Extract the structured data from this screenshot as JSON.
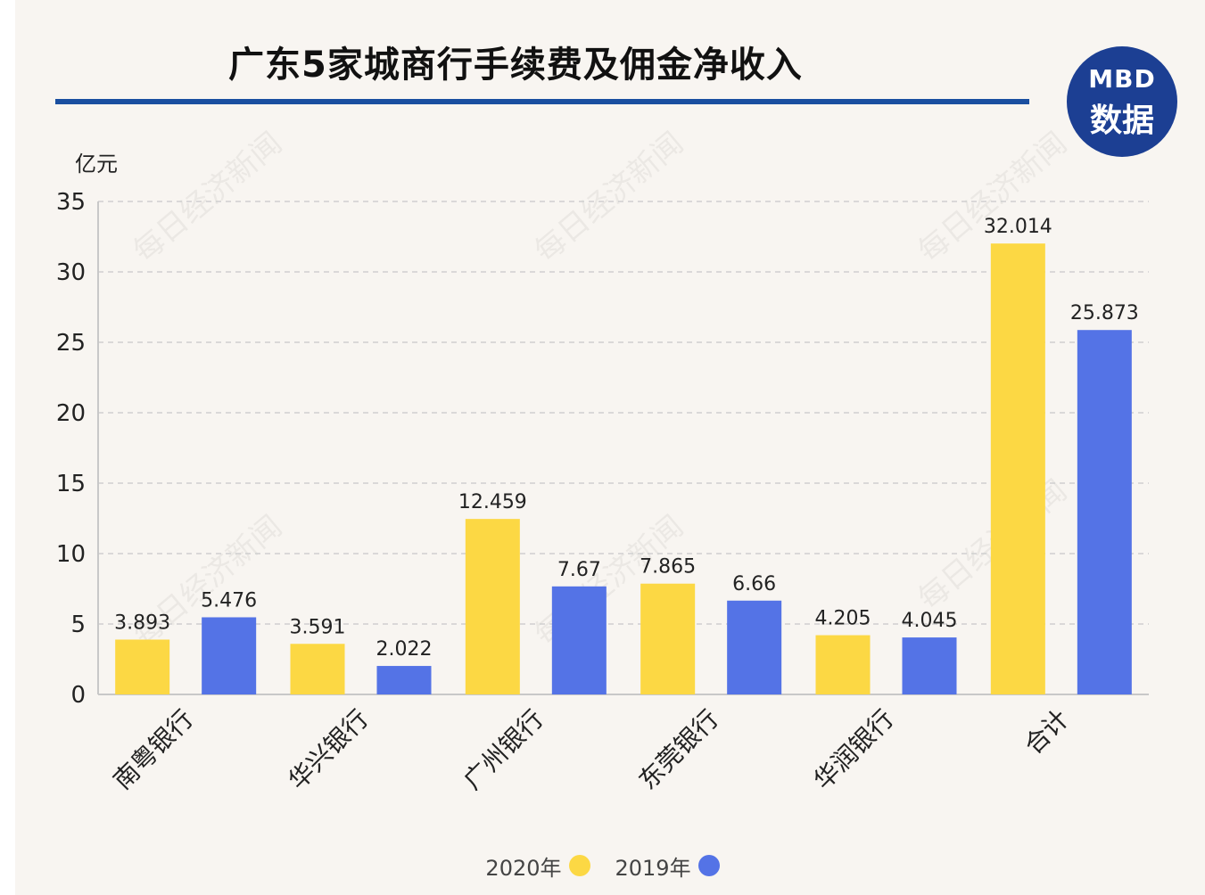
{
  "title": "广东5家城商行手续费及佣金净收入",
  "badge": {
    "line1": "MBD",
    "line2": "数据"
  },
  "watermark": "每日经济新闻",
  "colors": {
    "series_2020": "#fcd844",
    "series_2019": "#5473e6",
    "rule": "#1a4fa0",
    "badge": "#1c3f93"
  },
  "chart_data": {
    "type": "bar",
    "ylabel": "亿元",
    "ylim": [
      0,
      35
    ],
    "yticks": [
      0,
      5,
      10,
      15,
      20,
      25,
      30,
      35
    ],
    "grid": true,
    "legend_position": "bottom",
    "categories": [
      "南粤银行",
      "华兴银行",
      "广州银行",
      "东莞银行",
      "华润银行",
      "合计"
    ],
    "series": [
      {
        "name": "2020年",
        "color": "#fcd844",
        "values": [
          3.893,
          3.591,
          12.459,
          7.865,
          4.205,
          32.014
        ],
        "labels": [
          "3.893",
          "3.591",
          "12.459",
          "7.865",
          "4.205",
          "32.014"
        ]
      },
      {
        "name": "2019年",
        "color": "#5473e6",
        "values": [
          5.476,
          2.022,
          7.67,
          6.66,
          4.045,
          25.873
        ],
        "labels": [
          "5.476",
          "2.022",
          "7.67",
          "6.66",
          "4.045",
          "25.873"
        ]
      }
    ]
  }
}
